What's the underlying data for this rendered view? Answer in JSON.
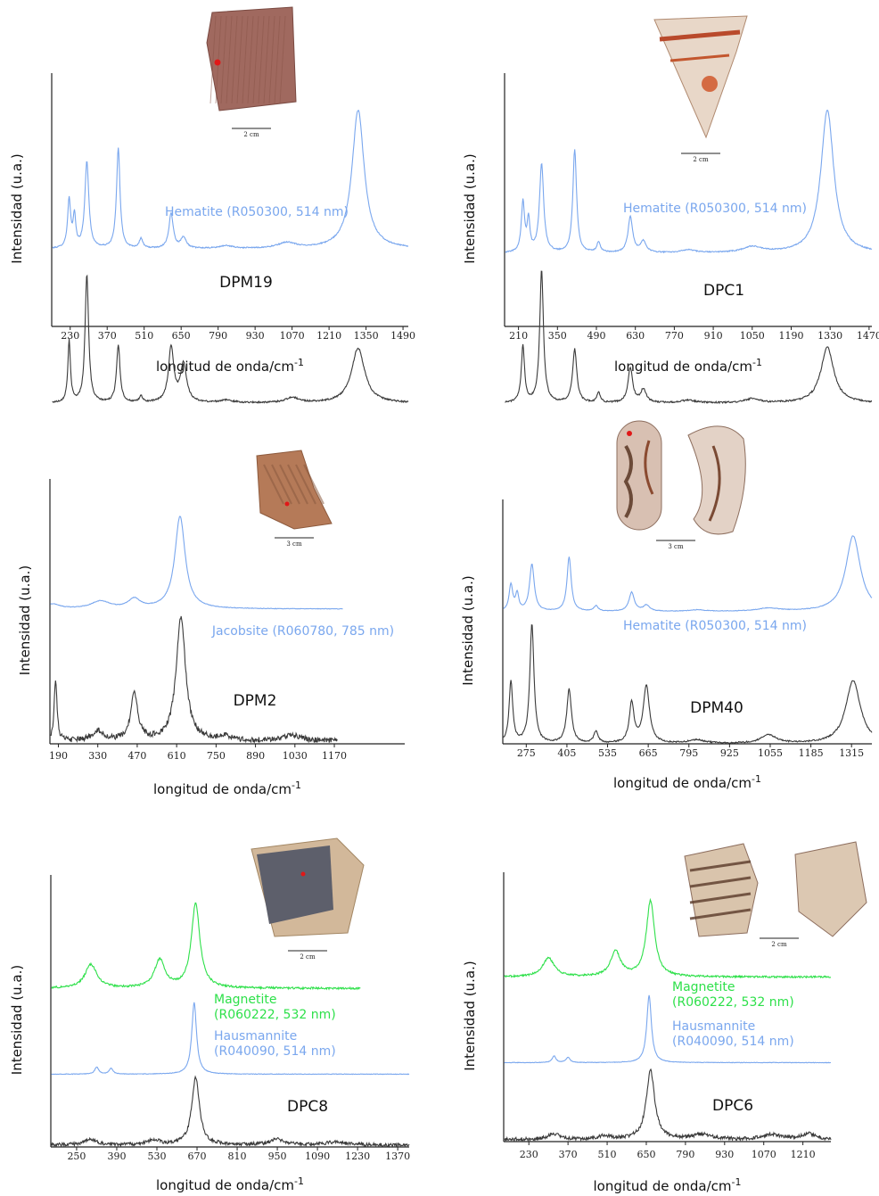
{
  "colors": {
    "spectrum": "#3a3a3a",
    "hematite": "#7aa7ee",
    "jacobsite": "#7aa7ee",
    "hausmannite": "#7aa7ee",
    "magnetite": "#2ee04a",
    "axis": "#222222"
  },
  "chart_data": [
    {
      "type": "line",
      "sample_label": "DPM19",
      "xlabel": "longitud de onda/cm",
      "xlabel_sup": "-1",
      "ylabel": "Intensidad (u.a.)",
      "xticks": [
        230,
        370,
        510,
        650,
        790,
        930,
        1070,
        1210,
        1350,
        1490
      ],
      "xlim": [
        160,
        1510
      ],
      "photo": {
        "kind": "single",
        "scale_label": "2 cm"
      },
      "series": [
        {
          "name": "Hematite (R050300, 514 nm)",
          "color_key": "hematite",
          "noise": 0.004,
          "baseline": 0.05,
          "peaks": [
            [
              226,
              0.35,
              7
            ],
            [
              246,
              0.22,
              6
            ],
            [
              293,
              0.62,
              9
            ],
            [
              412,
              0.72,
              8
            ],
            [
              498,
              0.07,
              8
            ],
            [
              612,
              0.25,
              10
            ],
            [
              659,
              0.08,
              12
            ],
            [
              820,
              0.02,
              30
            ],
            [
              1050,
              0.04,
              40
            ],
            [
              1320,
              1.0,
              28
            ]
          ]
        },
        {
          "name": "DPM19",
          "color_key": "spectrum",
          "noise": 0.006,
          "baseline": 0.0,
          "unlabeled": true,
          "peaks": [
            [
              226,
              0.48,
              6
            ],
            [
              293,
              1.0,
              8
            ],
            [
              412,
              0.45,
              8
            ],
            [
              498,
              0.05,
              7
            ],
            [
              612,
              0.43,
              12
            ],
            [
              659,
              0.3,
              14
            ],
            [
              820,
              0.02,
              30
            ],
            [
              1070,
              0.04,
              30
            ],
            [
              1320,
              0.43,
              30
            ]
          ]
        }
      ]
    },
    {
      "type": "line",
      "sample_label": "DPC1",
      "xlabel": "longitud de onda/cm",
      "xlabel_sup": "-1",
      "ylabel": "Intensidad (u.a.)",
      "xticks": [
        210,
        350,
        490,
        630,
        770,
        910,
        1050,
        1190,
        1330,
        1470
      ],
      "xlim": [
        160,
        1480
      ],
      "photo": {
        "kind": "triangle",
        "scale_label": "2 cm"
      },
      "series": [
        {
          "name": "Hematite (R050300, 514 nm)",
          "color_key": "hematite",
          "noise": 0.004,
          "baseline": 0.05,
          "peaks": [
            [
              226,
              0.35,
              7
            ],
            [
              246,
              0.22,
              6
            ],
            [
              293,
              0.62,
              9
            ],
            [
              412,
              0.72,
              8
            ],
            [
              498,
              0.07,
              8
            ],
            [
              612,
              0.25,
              10
            ],
            [
              659,
              0.08,
              12
            ],
            [
              820,
              0.02,
              30
            ],
            [
              1050,
              0.04,
              40
            ],
            [
              1320,
              1.0,
              28
            ]
          ]
        },
        {
          "name": "DPC1",
          "color_key": "spectrum",
          "noise": 0.006,
          "baseline": 0.0,
          "unlabeled": true,
          "peaks": [
            [
              226,
              0.43,
              7
            ],
            [
              293,
              1.0,
              8
            ],
            [
              412,
              0.4,
              9
            ],
            [
              498,
              0.08,
              7
            ],
            [
              612,
              0.26,
              10
            ],
            [
              659,
              0.1,
              12
            ],
            [
              820,
              0.02,
              30
            ],
            [
              1050,
              0.03,
              30
            ],
            [
              1320,
              0.42,
              28
            ]
          ]
        }
      ]
    },
    {
      "type": "line",
      "sample_label": "DPM2",
      "xlabel": "longitud de onda/cm",
      "xlabel_sup": "-1",
      "ylabel": "Intensidad (u.a.)",
      "xticks": [
        190,
        330,
        470,
        610,
        750,
        890,
        1030,
        1170
      ],
      "xlim": [
        160,
        1420
      ],
      "photo": {
        "kind": "shard",
        "scale_label": "3 cm"
      },
      "series": [
        {
          "name": "Jacobsite (R060780, 785 nm)",
          "color_key": "jacobsite",
          "noise": 0.003,
          "baseline": 0.04,
          "xmax": 1200,
          "peaks": [
            [
              170,
              0.05,
              30
            ],
            [
              340,
              0.08,
              40
            ],
            [
              460,
              0.1,
              25
            ],
            [
              622,
              1.0,
              22
            ]
          ]
        },
        {
          "name": "DPM2",
          "color_key": "spectrum",
          "noise": 0.022,
          "baseline": 0.02,
          "xmax": 1180,
          "unlabeled": true,
          "peaks": [
            [
              180,
              0.5,
              6
            ],
            [
              330,
              0.08,
              25
            ],
            [
              460,
              0.38,
              15
            ],
            [
              625,
              1.0,
              20
            ],
            [
              780,
              0.04,
              25
            ],
            [
              1020,
              0.05,
              40
            ]
          ]
        }
      ]
    },
    {
      "type": "line",
      "sample_label": "DPM40",
      "xlabel": "longitud de onda/cm",
      "xlabel_sup": "-1",
      "ylabel": "Intensidad (u.a.)",
      "xticks": [
        275,
        405,
        535,
        665,
        795,
        925,
        1055,
        1185,
        1315
      ],
      "xlim": [
        200,
        1380
      ],
      "photo": {
        "kind": "pair_bowl",
        "scale_label": "3 cm"
      },
      "series": [
        {
          "name": "Hematite (R050300, 514 nm)",
          "color_key": "hematite",
          "noise": 0.004,
          "baseline": 0.05,
          "peaks": [
            [
              226,
              0.35,
              7
            ],
            [
              246,
              0.22,
              6
            ],
            [
              293,
              0.62,
              9
            ],
            [
              412,
              0.72,
              8
            ],
            [
              498,
              0.07,
              8
            ],
            [
              612,
              0.25,
              10
            ],
            [
              659,
              0.08,
              12
            ],
            [
              820,
              0.02,
              30
            ],
            [
              1050,
              0.04,
              40
            ],
            [
              1320,
              1.0,
              28
            ]
          ]
        },
        {
          "name": "DPM40",
          "color_key": "spectrum",
          "noise": 0.006,
          "baseline": 0.0,
          "unlabeled": true,
          "peaks": [
            [
              226,
              0.52,
              7
            ],
            [
              293,
              1.0,
              8
            ],
            [
              412,
              0.45,
              9
            ],
            [
              498,
              0.1,
              8
            ],
            [
              612,
              0.33,
              9
            ],
            [
              659,
              0.48,
              12
            ],
            [
              820,
              0.03,
              30
            ],
            [
              1050,
              0.07,
              30
            ],
            [
              1320,
              0.53,
              28
            ]
          ]
        }
      ]
    },
    {
      "type": "line",
      "sample_label": "DPC8",
      "xlabel": "longitud de onda/cm",
      "xlabel_sup": "-1",
      "ylabel": "Intensidad (u.a.)",
      "xticks": [
        250,
        390,
        530,
        670,
        810,
        950,
        1090,
        1230,
        1370
      ],
      "xlim": [
        160,
        1410
      ],
      "photo": {
        "kind": "dark",
        "scale_label": "2 cm"
      },
      "series": [
        {
          "name": "Magnetite (R060222, 532 nm)",
          "name_lines": [
            "Magnetite",
            "(R060222, 532 nm)"
          ],
          "color_key": "magnetite",
          "noise": 0.012,
          "baseline": 0.03,
          "xmax": 1240,
          "peaks": [
            [
              300,
              0.28,
              25
            ],
            [
              540,
              0.33,
              22
            ],
            [
              665,
              1.0,
              18
            ]
          ]
        },
        {
          "name": "Hausmannite (R040090, 514 nm)",
          "name_lines": [
            "Hausmannite",
            "(R040090, 514 nm)"
          ],
          "color_key": "hausmannite",
          "noise": 0.004,
          "baseline": 0.02,
          "peaks": [
            [
              320,
              0.1,
              8
            ],
            [
              370,
              0.08,
              8
            ],
            [
              660,
              1.0,
              10
            ]
          ]
        },
        {
          "name": "DPC8",
          "color_key": "spectrum",
          "noise": 0.025,
          "baseline": 0.03,
          "unlabeled": true,
          "peaks": [
            [
              300,
              0.08,
              25
            ],
            [
              520,
              0.07,
              25
            ],
            [
              665,
              1.0,
              16
            ],
            [
              950,
              0.08,
              30
            ],
            [
              1150,
              0.04,
              40
            ]
          ]
        }
      ]
    },
    {
      "type": "line",
      "sample_label": "DPC6",
      "xlabel": "longitud de onda/cm",
      "xlabel_sup": "-1",
      "ylabel": "Intensidad (u.a.)",
      "xticks": [
        230,
        370,
        510,
        650,
        790,
        930,
        1070,
        1210
      ],
      "xlim": [
        140,
        1310
      ],
      "photo": {
        "kind": "pair_flat",
        "scale_label": "2 cm"
      },
      "series": [
        {
          "name": "Magnetite (R060222, 532 nm)",
          "name_lines": [
            "Magnetite",
            "(R060222, 532 nm)"
          ],
          "color_key": "magnetite",
          "noise": 0.012,
          "baseline": 0.03,
          "peaks": [
            [
              300,
              0.25,
              25
            ],
            [
              540,
              0.33,
              22
            ],
            [
              665,
              1.0,
              18
            ]
          ]
        },
        {
          "name": "Hausmannite (R040090, 514 nm)",
          "name_lines": [
            "Hausmannite",
            "(R040090, 514 nm)"
          ],
          "color_key": "hausmannite",
          "noise": 0.004,
          "baseline": 0.02,
          "peaks": [
            [
              320,
              0.1,
              8
            ],
            [
              370,
              0.08,
              8
            ],
            [
              660,
              1.0,
              10
            ]
          ]
        },
        {
          "name": "DPC6",
          "color_key": "spectrum",
          "noise": 0.025,
          "baseline": 0.03,
          "unlabeled": true,
          "peaks": [
            [
              320,
              0.08,
              25
            ],
            [
              500,
              0.05,
              25
            ],
            [
              665,
              1.0,
              18
            ],
            [
              850,
              0.07,
              40
            ],
            [
              1100,
              0.07,
              40
            ],
            [
              1230,
              0.08,
              30
            ]
          ]
        }
      ]
    }
  ]
}
